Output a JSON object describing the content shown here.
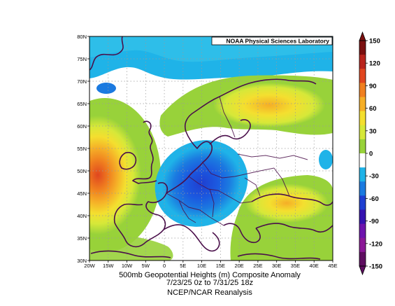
{
  "map": {
    "credit": "NOAA Physical Sciences Laboratory",
    "lat_labels": [
      "30N",
      "35N",
      "40N",
      "45N",
      "50N",
      "55N",
      "60N",
      "65N",
      "70N",
      "75N",
      "80N"
    ],
    "lon_labels": [
      "20W",
      "15W",
      "10W",
      "5W",
      "0",
      "5E",
      "10E",
      "15E",
      "20E",
      "25E",
      "30E",
      "35E",
      "40E",
      "45E"
    ],
    "caption_line1": "500mb Geopotential Heights (m)    Composite Anomaly",
    "caption_line2": "7/23/25 0z  to 7/31/25 18z",
    "caption_line3": "NCEP/NCAR Reanalysis"
  },
  "colorbar": {
    "labels": [
      "150",
      "120",
      "90",
      "60",
      "30",
      "0",
      "-30",
      "-60",
      "-90",
      "-120",
      "-150"
    ],
    "colors": [
      "#7a0f0f",
      "#b8231c",
      "#e0461f",
      "#f07f1f",
      "#f5ae27",
      "#f4df2f",
      "#d6e839",
      "#98d23a",
      "#ffffff",
      "#1fb3e8",
      "#1b7ae0",
      "#1f3fd1",
      "#3512b0",
      "#6d13ad",
      "#8a1796",
      "#5e0d60"
    ]
  },
  "colors": {
    "coastline": "#4a0f4a",
    "grid": "#9a9a9a"
  }
}
